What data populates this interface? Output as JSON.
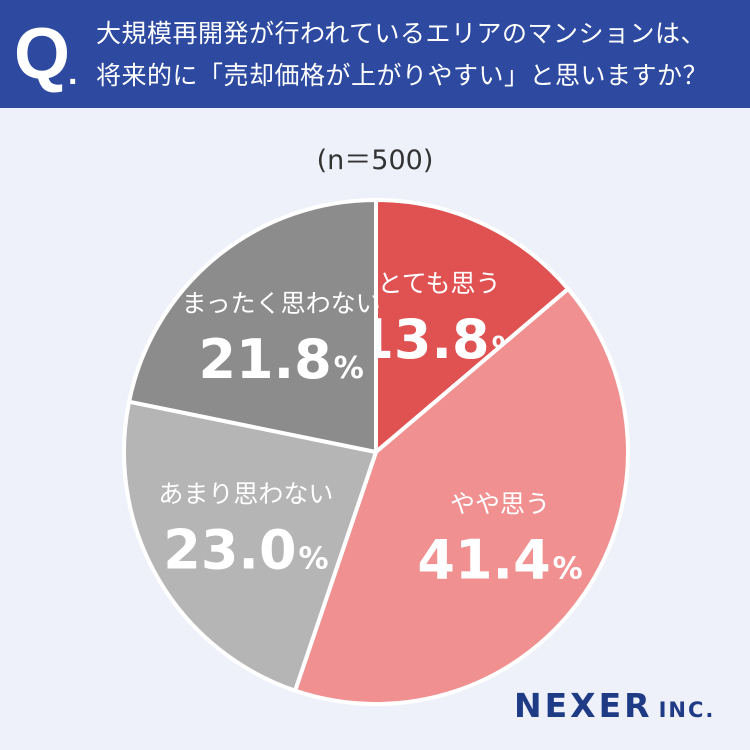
{
  "question": {
    "mark": "Q",
    "dot": ".",
    "line1": "大規模再開発が行われているエリアのマンションは、",
    "line2": "将来的に「売却価格が上がりやすい」と思いますか？"
  },
  "sample_label": "(n＝500)",
  "logo": {
    "main": "NEXER",
    "sub": "INC."
  },
  "colors": {
    "header": "#2d4aa0",
    "background": "#eef1fa",
    "logo": "#1f3b86"
  },
  "chart_data": {
    "type": "pie",
    "unit": "%",
    "slices": [
      {
        "label": "とても思う",
        "value": 13.8,
        "color": "#e05252"
      },
      {
        "label": "やや思う",
        "value": 41.4,
        "color": "#f09090"
      },
      {
        "label": "あまり思わない",
        "value": 23.0,
        "color": "#b5b5b5"
      },
      {
        "label": "まったく思わない",
        "value": 21.8,
        "color": "#8c8c8c"
      }
    ]
  }
}
